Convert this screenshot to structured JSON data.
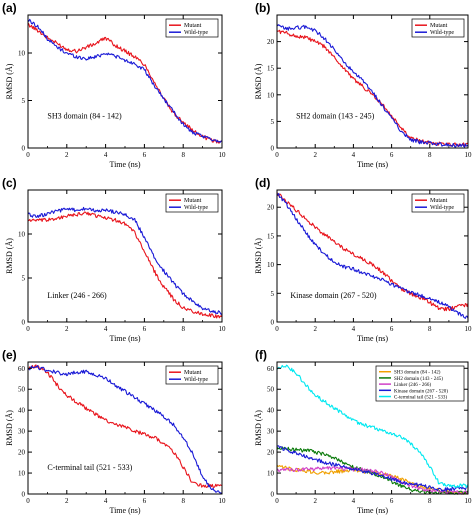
{
  "figure": {
    "panels": [
      {
        "id": "a",
        "label": "(a)"
      },
      {
        "id": "b",
        "label": "(b)"
      },
      {
        "id": "c",
        "label": "(c)"
      },
      {
        "id": "d",
        "label": "(d)"
      },
      {
        "id": "e",
        "label": "(e)"
      },
      {
        "id": "f",
        "label": "(f)"
      }
    ]
  },
  "chart_data": [
    {
      "panel": "a",
      "type": "line",
      "xlabel": "Time (ns)",
      "ylabel": "RMSD (Å)",
      "xlim": [
        0,
        10
      ],
      "ylim": [
        0,
        14
      ],
      "xticks": [
        0,
        2,
        4,
        6,
        8,
        10
      ],
      "yticks": [
        0,
        5,
        10
      ],
      "annotation": "SH3 domain (84 - 142)",
      "legend": "top-right",
      "series": [
        {
          "name": "Mutant",
          "color": "#e8141c",
          "x": [
            0,
            0.5,
            1,
            1.5,
            2,
            2.5,
            3,
            3.5,
            4,
            4.5,
            5,
            5.5,
            6,
            6.5,
            7,
            7.5,
            8,
            8.5,
            9,
            9.5,
            10
          ],
          "y": [
            13,
            12.4,
            11.6,
            11,
            10.4,
            10.2,
            10.6,
            11,
            11.6,
            10.8,
            10.2,
            9.6,
            8.8,
            7,
            5.2,
            3.6,
            2.8,
            1.8,
            1.2,
            0.8,
            0.6
          ]
        },
        {
          "name": "Wild-type",
          "color": "#1a1ad6",
          "x": [
            0,
            0.5,
            1,
            1.5,
            2,
            2.5,
            3,
            3.5,
            4,
            4.5,
            5,
            5.5,
            6,
            6.5,
            7,
            7.5,
            8,
            8.5,
            9,
            9.5,
            10
          ],
          "y": [
            13.5,
            12.8,
            11.5,
            10.6,
            10,
            9.6,
            9.4,
            9.6,
            10,
            9.7,
            9.2,
            8.9,
            8.2,
            6.6,
            5.2,
            3.8,
            2.5,
            1.6,
            1.2,
            0.9,
            0.7
          ]
        }
      ]
    },
    {
      "panel": "b",
      "type": "line",
      "xlabel": "Time (ns)",
      "ylabel": "RMSD (Å)",
      "xlim": [
        0,
        10
      ],
      "ylim": [
        0,
        25
      ],
      "xticks": [
        0,
        2,
        4,
        6,
        8,
        10
      ],
      "yticks": [
        0,
        5,
        10,
        15,
        20
      ],
      "annotation": "SH2 domain (143 - 245)",
      "legend": "top-right",
      "series": [
        {
          "name": "Mutant",
          "color": "#e8141c",
          "x": [
            0,
            0.5,
            1,
            1.5,
            2,
            2.5,
            3,
            3.5,
            4,
            4.5,
            5,
            5.5,
            6,
            6.5,
            7,
            7.5,
            8,
            8.5,
            9,
            9.5,
            10
          ],
          "y": [
            22,
            21.6,
            21,
            20.8,
            20,
            19,
            17,
            15,
            13,
            11.5,
            10,
            8.2,
            6,
            3.8,
            2,
            1.3,
            1,
            0.8,
            0.7,
            0.6,
            0.6
          ]
        },
        {
          "name": "Wild-type",
          "color": "#1a1ad6",
          "x": [
            0,
            0.5,
            1,
            1.5,
            2,
            2.5,
            3,
            3.5,
            4,
            4.5,
            5,
            5.5,
            6,
            6.5,
            7,
            7.5,
            8,
            8.5,
            9,
            9.5,
            10
          ],
          "y": [
            23,
            22.4,
            22.6,
            22.8,
            22,
            20.6,
            18.4,
            16.2,
            14.2,
            12.6,
            10.5,
            8,
            5.6,
            3.2,
            1.6,
            1.1,
            0.9,
            0.7,
            0.6,
            0.5,
            0.5
          ]
        }
      ]
    },
    {
      "panel": "c",
      "type": "line",
      "xlabel": "Time (ns)",
      "ylabel": "RMSD (Å)",
      "xlim": [
        0,
        10
      ],
      "ylim": [
        0,
        15
      ],
      "xticks": [
        0,
        2,
        4,
        6,
        8,
        10
      ],
      "yticks": [
        0,
        5,
        10
      ],
      "annotation": "Linker (246 - 266)",
      "legend": "top-right",
      "series": [
        {
          "name": "Mutant",
          "color": "#e8141c",
          "x": [
            0,
            0.5,
            1,
            1.5,
            2,
            2.5,
            3,
            3.5,
            4,
            4.5,
            5,
            5.5,
            6,
            6.5,
            7,
            7.5,
            8,
            8.5,
            9,
            9.5,
            10
          ],
          "y": [
            11.6,
            11.5,
            11.6,
            11.8,
            12,
            12.2,
            12.4,
            12.1,
            11.8,
            11.6,
            11.2,
            10.2,
            8,
            5.8,
            4,
            2.6,
            1.6,
            1.2,
            0.9,
            0.7,
            0.6
          ]
        },
        {
          "name": "Wild-type",
          "color": "#1a1ad6",
          "x": [
            0,
            0.5,
            1,
            1.5,
            2,
            2.5,
            3,
            3.5,
            4,
            4.5,
            5,
            5.5,
            6,
            6.5,
            7,
            7.5,
            8,
            8.5,
            9,
            9.5,
            10
          ],
          "y": [
            12.2,
            12,
            12.3,
            12.6,
            12.8,
            12.7,
            12.9,
            12.6,
            12.7,
            12.5,
            12.2,
            11.6,
            9.6,
            7.4,
            5.8,
            4.4,
            3.2,
            2.4,
            1.6,
            1.2,
            1
          ]
        }
      ]
    },
    {
      "panel": "d",
      "type": "line",
      "xlabel": "Time (ns)",
      "ylabel": "RMSD (Å)",
      "xlim": [
        0,
        10
      ],
      "ylim": [
        0,
        23
      ],
      "xticks": [
        0,
        2,
        4,
        6,
        8,
        10
      ],
      "yticks": [
        0,
        5,
        10,
        15,
        20
      ],
      "annotation": "Kinase domain (267 - 520)",
      "legend": "top-right",
      "series": [
        {
          "name": "Mutant",
          "color": "#e8141c",
          "x": [
            0,
            0.5,
            1,
            1.5,
            2,
            2.5,
            3,
            3.5,
            4,
            4.5,
            5,
            5.5,
            6,
            6.5,
            7,
            7.5,
            8,
            8.5,
            9,
            9.5,
            10
          ],
          "y": [
            22.5,
            21,
            19.5,
            18,
            16.5,
            15.2,
            14,
            12.8,
            11.8,
            10.9,
            10,
            8.8,
            7.2,
            5.8,
            5,
            4.2,
            3.4,
            2.3,
            2.2,
            2.8,
            3
          ]
        },
        {
          "name": "Wild-type",
          "color": "#1a1ad6",
          "x": [
            0,
            0.5,
            1,
            1.5,
            2,
            2.5,
            3,
            3.5,
            4,
            4.5,
            5,
            5.5,
            6,
            6.5,
            7,
            7.5,
            8,
            8.5,
            9,
            9.5,
            10
          ],
          "y": [
            22.5,
            20.5,
            18,
            15.6,
            13.5,
            11.8,
            10.4,
            9.6,
            9.2,
            8.6,
            8,
            7.4,
            6.6,
            5.8,
            5.2,
            4.6,
            4,
            3.4,
            2.6,
            1.5,
            0.6
          ]
        }
      ]
    },
    {
      "panel": "e",
      "type": "line",
      "xlabel": "Time (ns)",
      "ylabel": "RMSD (Å)",
      "xlim": [
        0,
        10
      ],
      "ylim": [
        0,
        63
      ],
      "xticks": [
        0,
        2,
        4,
        6,
        8,
        10
      ],
      "yticks": [
        0,
        10,
        20,
        30,
        40,
        50,
        60
      ],
      "annotation": "C-terminal tail (521 - 533)",
      "legend": "top-right",
      "series": [
        {
          "name": "Mutant",
          "color": "#e8141c",
          "x": [
            0,
            0.5,
            1,
            1.5,
            2,
            2.5,
            3,
            3.5,
            4,
            4.5,
            5,
            5.5,
            6,
            6.5,
            7,
            7.5,
            8,
            8.5,
            9,
            9.5,
            10
          ],
          "y": [
            60,
            61,
            58,
            52,
            47,
            44,
            41,
            38,
            35,
            33,
            32,
            30,
            28.5,
            27,
            24,
            20,
            13,
            5,
            4,
            4,
            4
          ]
        },
        {
          "name": "Wild-type",
          "color": "#1a1ad6",
          "x": [
            0,
            0.5,
            1,
            1.5,
            2,
            2.5,
            3,
            3.5,
            4,
            4.5,
            5,
            5.5,
            6,
            6.5,
            7,
            7.5,
            8,
            8.5,
            9,
            9.5,
            10
          ],
          "y": [
            60,
            60.5,
            59,
            58,
            57,
            58,
            58.5,
            57,
            55,
            52,
            49,
            46,
            43,
            40,
            37,
            33,
            27,
            19,
            8,
            2,
            1
          ]
        }
      ]
    },
    {
      "panel": "f",
      "type": "line",
      "xlabel": "Time (ns)",
      "ylabel": "RMSD (Å)",
      "xlim": [
        0,
        10
      ],
      "ylim": [
        0,
        63
      ],
      "xticks": [
        0,
        2,
        4,
        6,
        8,
        10
      ],
      "yticks": [
        0,
        10,
        20,
        30,
        40,
        50,
        60
      ],
      "legend": "top-right",
      "series": [
        {
          "name": "SH3 domain (84 - 142)",
          "color": "#f0a000",
          "x": [
            0,
            0.5,
            1,
            1.5,
            2,
            2.5,
            3,
            3.5,
            4,
            4.5,
            5,
            5.5,
            6,
            6.5,
            7,
            7.5,
            8,
            8.5,
            9,
            9.5,
            10
          ],
          "y": [
            13,
            12.4,
            11.6,
            11,
            10.4,
            10.2,
            10.6,
            11,
            11.6,
            10.8,
            10.2,
            9.6,
            8.8,
            7,
            5.2,
            3.6,
            2.8,
            1.8,
            1.2,
            0.8,
            0.6
          ]
        },
        {
          "name": "SH2 domain (143 - 245)",
          "color": "#0a7a0a",
          "x": [
            0,
            0.5,
            1,
            1.5,
            2,
            2.5,
            3,
            3.5,
            4,
            4.5,
            5,
            5.5,
            6,
            6.5,
            7,
            7.5,
            8,
            8.5,
            9,
            9.5,
            10
          ],
          "y": [
            22,
            21.6,
            21,
            20.8,
            20,
            19,
            17,
            15,
            13,
            11.5,
            10,
            8.2,
            6,
            3.8,
            2,
            1.3,
            1,
            0.8,
            0.7,
            0.6,
            0.6
          ]
        },
        {
          "name": "Linker (246 - 266)",
          "color": "#d040c8",
          "x": [
            0,
            0.5,
            1,
            1.5,
            2,
            2.5,
            3,
            3.5,
            4,
            4.5,
            5,
            5.5,
            6,
            6.5,
            7,
            7.5,
            8,
            8.5,
            9,
            9.5,
            10
          ],
          "y": [
            11.6,
            11.5,
            11.6,
            11.8,
            12,
            12.2,
            12.4,
            12.1,
            11.8,
            11.6,
            11.2,
            10.2,
            8,
            5.8,
            4,
            2.6,
            1.6,
            1.2,
            0.9,
            0.7,
            0.6
          ]
        },
        {
          "name": "Kinase domain (267 - 520)",
          "color": "#1a1ad6",
          "x": [
            0,
            0.5,
            1,
            1.5,
            2,
            2.5,
            3,
            3.5,
            4,
            4.5,
            5,
            5.5,
            6,
            6.5,
            7,
            7.5,
            8,
            8.5,
            9,
            9.5,
            10
          ],
          "y": [
            22.5,
            21,
            19.5,
            18,
            16.5,
            15.2,
            14,
            12.8,
            11.8,
            10.9,
            10,
            8.8,
            7.2,
            5.8,
            5,
            4.2,
            3.4,
            2.3,
            2.2,
            2.8,
            3
          ]
        },
        {
          "name": "C-terminal tail (521 - 533)",
          "color": "#00e8f0",
          "x": [
            0,
            0.5,
            1,
            1.5,
            2,
            2.5,
            3,
            3.5,
            4,
            4.5,
            5,
            5.5,
            6,
            6.5,
            7,
            7.5,
            8,
            8.5,
            9,
            9.5,
            10
          ],
          "y": [
            60,
            61,
            58,
            52,
            47,
            44,
            41,
            38,
            35,
            33,
            32,
            30,
            28.5,
            27,
            24,
            20,
            13,
            5,
            4,
            4,
            4
          ]
        }
      ]
    }
  ]
}
